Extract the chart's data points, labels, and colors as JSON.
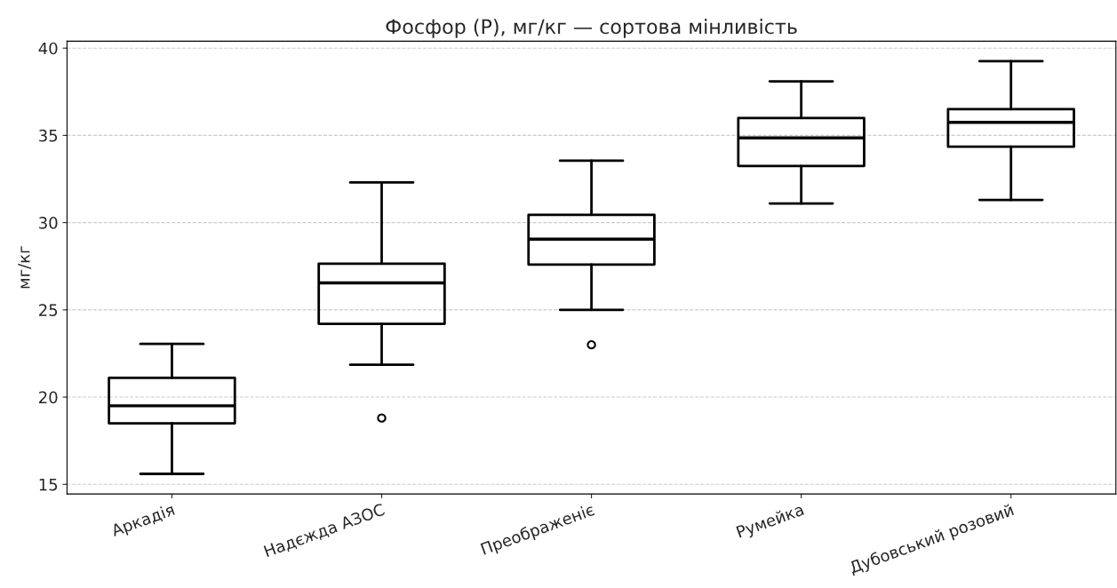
{
  "chart_data": {
    "type": "box",
    "title": "Фосфор (P), мг/кг — сортова мінливість",
    "ylabel": "мг/кг",
    "categories": [
      "Аркадія",
      "Надєжда АЗОС",
      "Преображеніє",
      "Румейка",
      "Дубовський розовий"
    ],
    "boxes": [
      {
        "low": 15.6,
        "q1": 18.5,
        "median": 19.5,
        "q3": 21.1,
        "high": 23.05
      },
      {
        "low": 21.85,
        "q1": 24.2,
        "median": 26.55,
        "q3": 27.65,
        "high": 32.3,
        "outliers": [
          18.8
        ]
      },
      {
        "low": 25.0,
        "q1": 27.6,
        "median": 29.05,
        "q3": 30.45,
        "high": 33.55,
        "outliers": [
          23.0
        ]
      },
      {
        "low": 31.1,
        "q1": 33.25,
        "median": 34.85,
        "q3": 36.0,
        "high": 38.1
      },
      {
        "low": 31.3,
        "q1": 34.35,
        "median": 35.75,
        "q3": 36.5,
        "high": 39.25
      }
    ],
    "color": "#000000",
    "ylim": [
      14.45,
      40.4
    ],
    "yticks": [
      15,
      20,
      25,
      30,
      35,
      40
    ],
    "grid": "y"
  }
}
